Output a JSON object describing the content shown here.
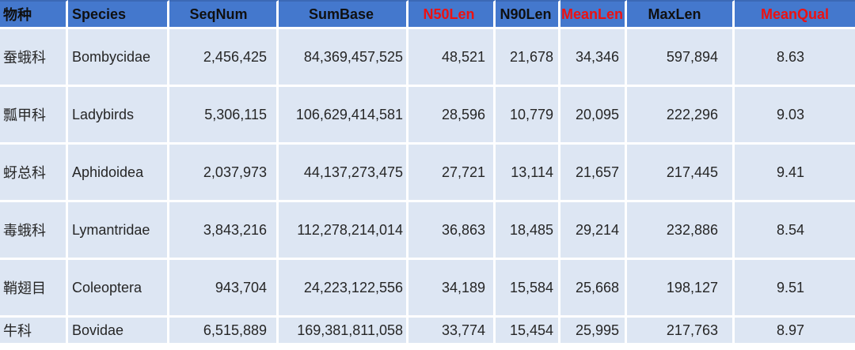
{
  "colors": {
    "header_bg": "#4478cd",
    "header_top_line": "#3b69b5",
    "row_bg": "#dde6f3",
    "separator": "#ffffff",
    "header_text": "#101010",
    "header_text_red": "#ee1111",
    "cell_text": "#262626"
  },
  "chart_data": {
    "type": "table",
    "title": "",
    "columns": [
      {
        "key": "cn",
        "label": "物种",
        "red": false
      },
      {
        "key": "species",
        "label": "Species",
        "red": false
      },
      {
        "key": "seqnum",
        "label": "SeqNum",
        "red": false
      },
      {
        "key": "sumbase",
        "label": "SumBase",
        "red": false
      },
      {
        "key": "n50len",
        "label": "N50Len",
        "red": true
      },
      {
        "key": "n90len",
        "label": "N90Len",
        "red": false
      },
      {
        "key": "meanlen",
        "label": "MeanLen",
        "red": true
      },
      {
        "key": "maxlen",
        "label": "MaxLen",
        "red": false
      },
      {
        "key": "meanqual",
        "label": "MeanQual",
        "red": true
      }
    ],
    "rows": [
      {
        "cn": "蚕蛾科",
        "species": "Bombycidae",
        "seqnum": "2,456,425",
        "sumbase": "84,369,457,525",
        "n50len": "48,521",
        "n90len": "21,678",
        "meanlen": "34,346",
        "maxlen": "597,894",
        "meanqual": "8.63"
      },
      {
        "cn": "瓢甲科",
        "species": "Ladybirds",
        "seqnum": "5,306,115",
        "sumbase": "106,629,414,581",
        "n50len": "28,596",
        "n90len": "10,779",
        "meanlen": "20,095",
        "maxlen": "222,296",
        "meanqual": "9.03"
      },
      {
        "cn": "蚜总科",
        "species": "Aphidoidea",
        "seqnum": "2,037,973",
        "sumbase": "44,137,273,475",
        "n50len": "27,721",
        "n90len": "13,114",
        "meanlen": "21,657",
        "maxlen": "217,445",
        "meanqual": "9.41"
      },
      {
        "cn": "毒蛾科",
        "species": "Lymantridae",
        "seqnum": "3,843,216",
        "sumbase": "112,278,214,014",
        "n50len": "36,863",
        "n90len": "18,485",
        "meanlen": "29,214",
        "maxlen": "232,886",
        "meanqual": "8.54"
      },
      {
        "cn": "鞘翅目",
        "species": "Coleoptera",
        "seqnum": "943,704",
        "sumbase": "24,223,122,556",
        "n50len": "34,189",
        "n90len": "15,584",
        "meanlen": "25,668",
        "maxlen": "198,127",
        "meanqual": "9.51"
      },
      {
        "cn": "牛科",
        "species": "Bovidae",
        "seqnum": "6,515,889",
        "sumbase": "169,381,811,058",
        "n50len": "33,774",
        "n90len": "15,454",
        "meanlen": "25,995",
        "maxlen": "217,763",
        "meanqual": "8.97"
      }
    ]
  }
}
